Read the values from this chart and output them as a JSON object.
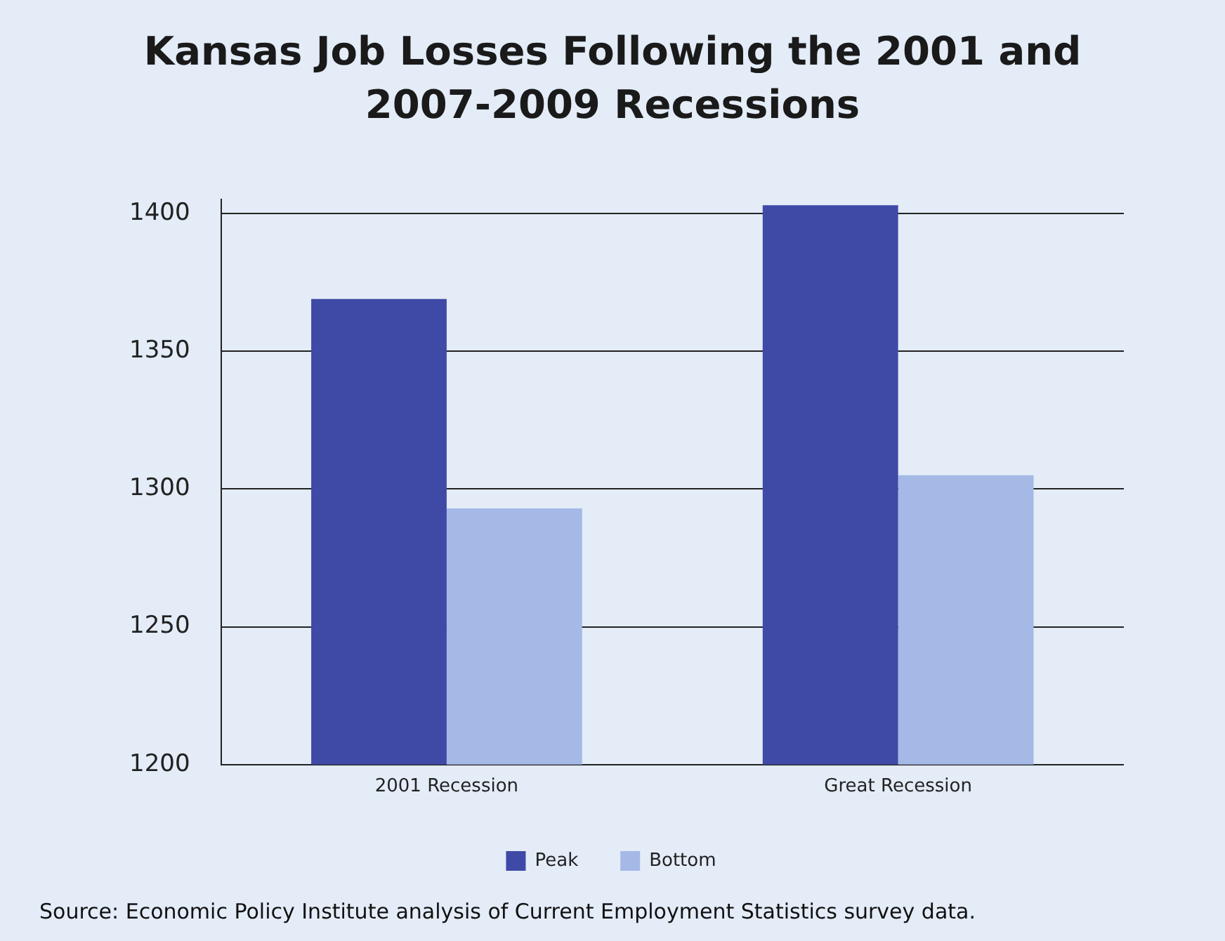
{
  "chart_data": {
    "type": "bar",
    "title": "Kansas Job Losses Following the 2001 and 2007-2009 Recessions",
    "categories": [
      "2001 Recession",
      "Great Recession"
    ],
    "series": [
      {
        "name": "Peak",
        "color": "#3f4aa6",
        "values": [
          1369,
          1403
        ]
      },
      {
        "name": "Bottom",
        "color": "#a4b9e6",
        "values": [
          1293,
          1305
        ]
      }
    ],
    "ylim": [
      1200,
      1405
    ],
    "yticks": [
      1200,
      1250,
      1300,
      1350,
      1400
    ],
    "grid": "y",
    "legend": "bottom",
    "annotations": [
      "Source:  Economic Policy Institute analysis of Current Employment Statistics survey data."
    ]
  }
}
